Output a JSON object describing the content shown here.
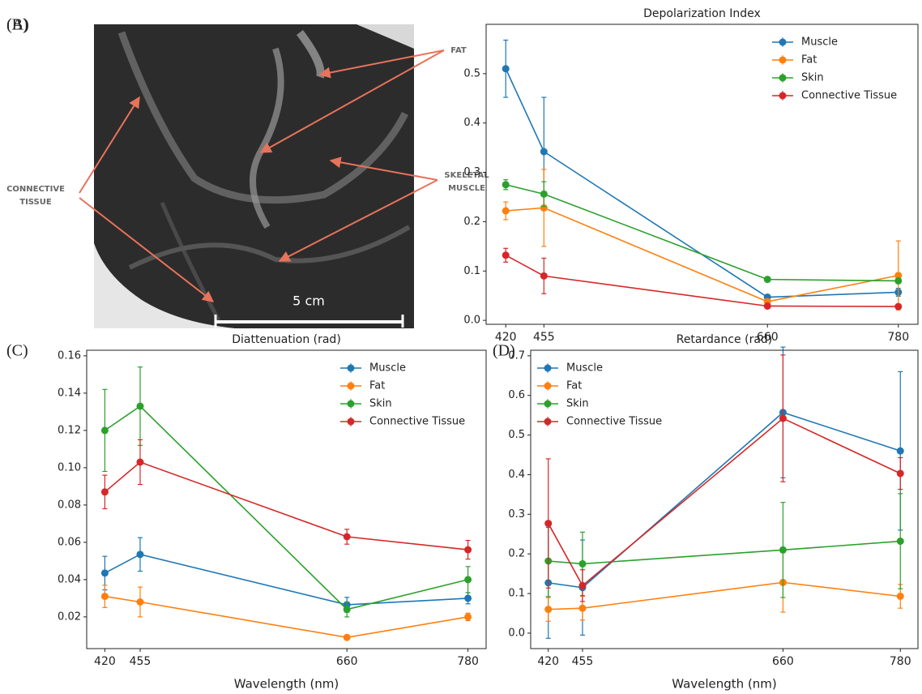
{
  "photo": {
    "panel_label": "(A)",
    "scale_bar": "5 cm",
    "annotations": [
      {
        "lines": [
          "FAT"
        ]
      },
      {
        "lines": [
          "SKELETAL",
          "MUSCLE"
        ]
      },
      {
        "lines": [
          "CONNECTIVE",
          "TISSUE"
        ]
      }
    ]
  },
  "chart_data": [
    {
      "type": "line",
      "panel_label": "(B)",
      "title": "Depolarization Index",
      "x": [
        420,
        455,
        660,
        780
      ],
      "xlim": [
        402,
        798
      ],
      "xticks": [
        420,
        455,
        660,
        780
      ],
      "ylim": [
        -0.008,
        0.6
      ],
      "yticks": [
        0.0,
        0.1,
        0.2,
        0.3,
        0.4,
        0.5
      ],
      "legend": "upper right",
      "series": [
        {
          "name": "Muscle",
          "color": "#1f77b4",
          "values": [
            0.51,
            0.342,
            0.047,
            0.057
          ],
          "errors": [
            0.058,
            0.11,
            0.005,
            0.008
          ]
        },
        {
          "name": "Fat",
          "color": "#ff7f0e",
          "values": [
            0.222,
            0.228,
            0.038,
            0.091
          ],
          "errors": [
            0.018,
            0.078,
            0.005,
            0.07
          ]
        },
        {
          "name": "Skin",
          "color": "#2ca02c",
          "values": [
            0.275,
            0.256,
            0.083,
            0.08
          ],
          "errors": [
            0.01,
            0.025,
            0.005,
            0.005
          ]
        },
        {
          "name": "Connective Tissue",
          "color": "#d62728",
          "values": [
            0.132,
            0.09,
            0.029,
            0.028
          ],
          "errors": [
            0.014,
            0.036,
            0.003,
            0.003
          ]
        }
      ]
    },
    {
      "type": "line",
      "panel_label": "(C)",
      "title": "Diattenuation (rad)",
      "xlabel": "Wavelength (nm)",
      "x": [
        420,
        455,
        660,
        780
      ],
      "xlim": [
        402,
        798
      ],
      "xticks": [
        420,
        455,
        660,
        780
      ],
      "ylim": [
        0.003,
        0.163
      ],
      "yticks": [
        0.02,
        0.04,
        0.06,
        0.08,
        0.1,
        0.12,
        0.14,
        0.16
      ],
      "legend": "upper right",
      "series": [
        {
          "name": "Muscle",
          "color": "#1f77b4",
          "values": [
            0.0435,
            0.0535,
            0.0265,
            0.03
          ],
          "errors": [
            0.009,
            0.009,
            0.004,
            0.003
          ]
        },
        {
          "name": "Fat",
          "color": "#ff7f0e",
          "values": [
            0.031,
            0.028,
            0.009,
            0.02
          ],
          "errors": [
            0.006,
            0.008,
            0.001,
            0.002
          ]
        },
        {
          "name": "Skin",
          "color": "#2ca02c",
          "values": [
            0.12,
            0.133,
            0.024,
            0.04
          ],
          "errors": [
            0.022,
            0.021,
            0.004,
            0.007
          ]
        },
        {
          "name": "Connective Tissue",
          "color": "#d62728",
          "values": [
            0.087,
            0.103,
            0.063,
            0.056
          ],
          "errors": [
            0.009,
            0.012,
            0.004,
            0.005
          ]
        }
      ]
    },
    {
      "type": "line",
      "panel_label": "(D)",
      "title": "Retardance (rad)",
      "xlabel": "Wavelength (nm)",
      "x": [
        420,
        455,
        660,
        780
      ],
      "xlim": [
        402,
        798
      ],
      "xticks": [
        420,
        455,
        660,
        780
      ],
      "ylim": [
        -0.039,
        0.714
      ],
      "yticks": [
        0.0,
        0.1,
        0.2,
        0.3,
        0.4,
        0.5,
        0.6,
        0.7
      ],
      "legend": "upper left",
      "series": [
        {
          "name": "Muscle",
          "color": "#1f77b4",
          "values": [
            0.127,
            0.115,
            0.557,
            0.46
          ],
          "errors": [
            0.14,
            0.12,
            0.165,
            0.2
          ]
        },
        {
          "name": "Fat",
          "color": "#ff7f0e",
          "values": [
            0.06,
            0.063,
            0.128,
            0.093
          ],
          "errors": [
            0.03,
            0.03,
            0.075,
            0.03
          ]
        },
        {
          "name": "Skin",
          "color": "#2ca02c",
          "values": [
            0.182,
            0.175,
            0.21,
            0.232
          ],
          "errors": [
            0.09,
            0.08,
            0.12,
            0.12
          ]
        },
        {
          "name": "Connective Tissue",
          "color": "#d62728",
          "values": [
            0.277,
            0.12,
            0.542,
            0.403
          ],
          "errors": [
            0.163,
            0.04,
            0.16,
            0.04
          ]
        }
      ]
    }
  ]
}
